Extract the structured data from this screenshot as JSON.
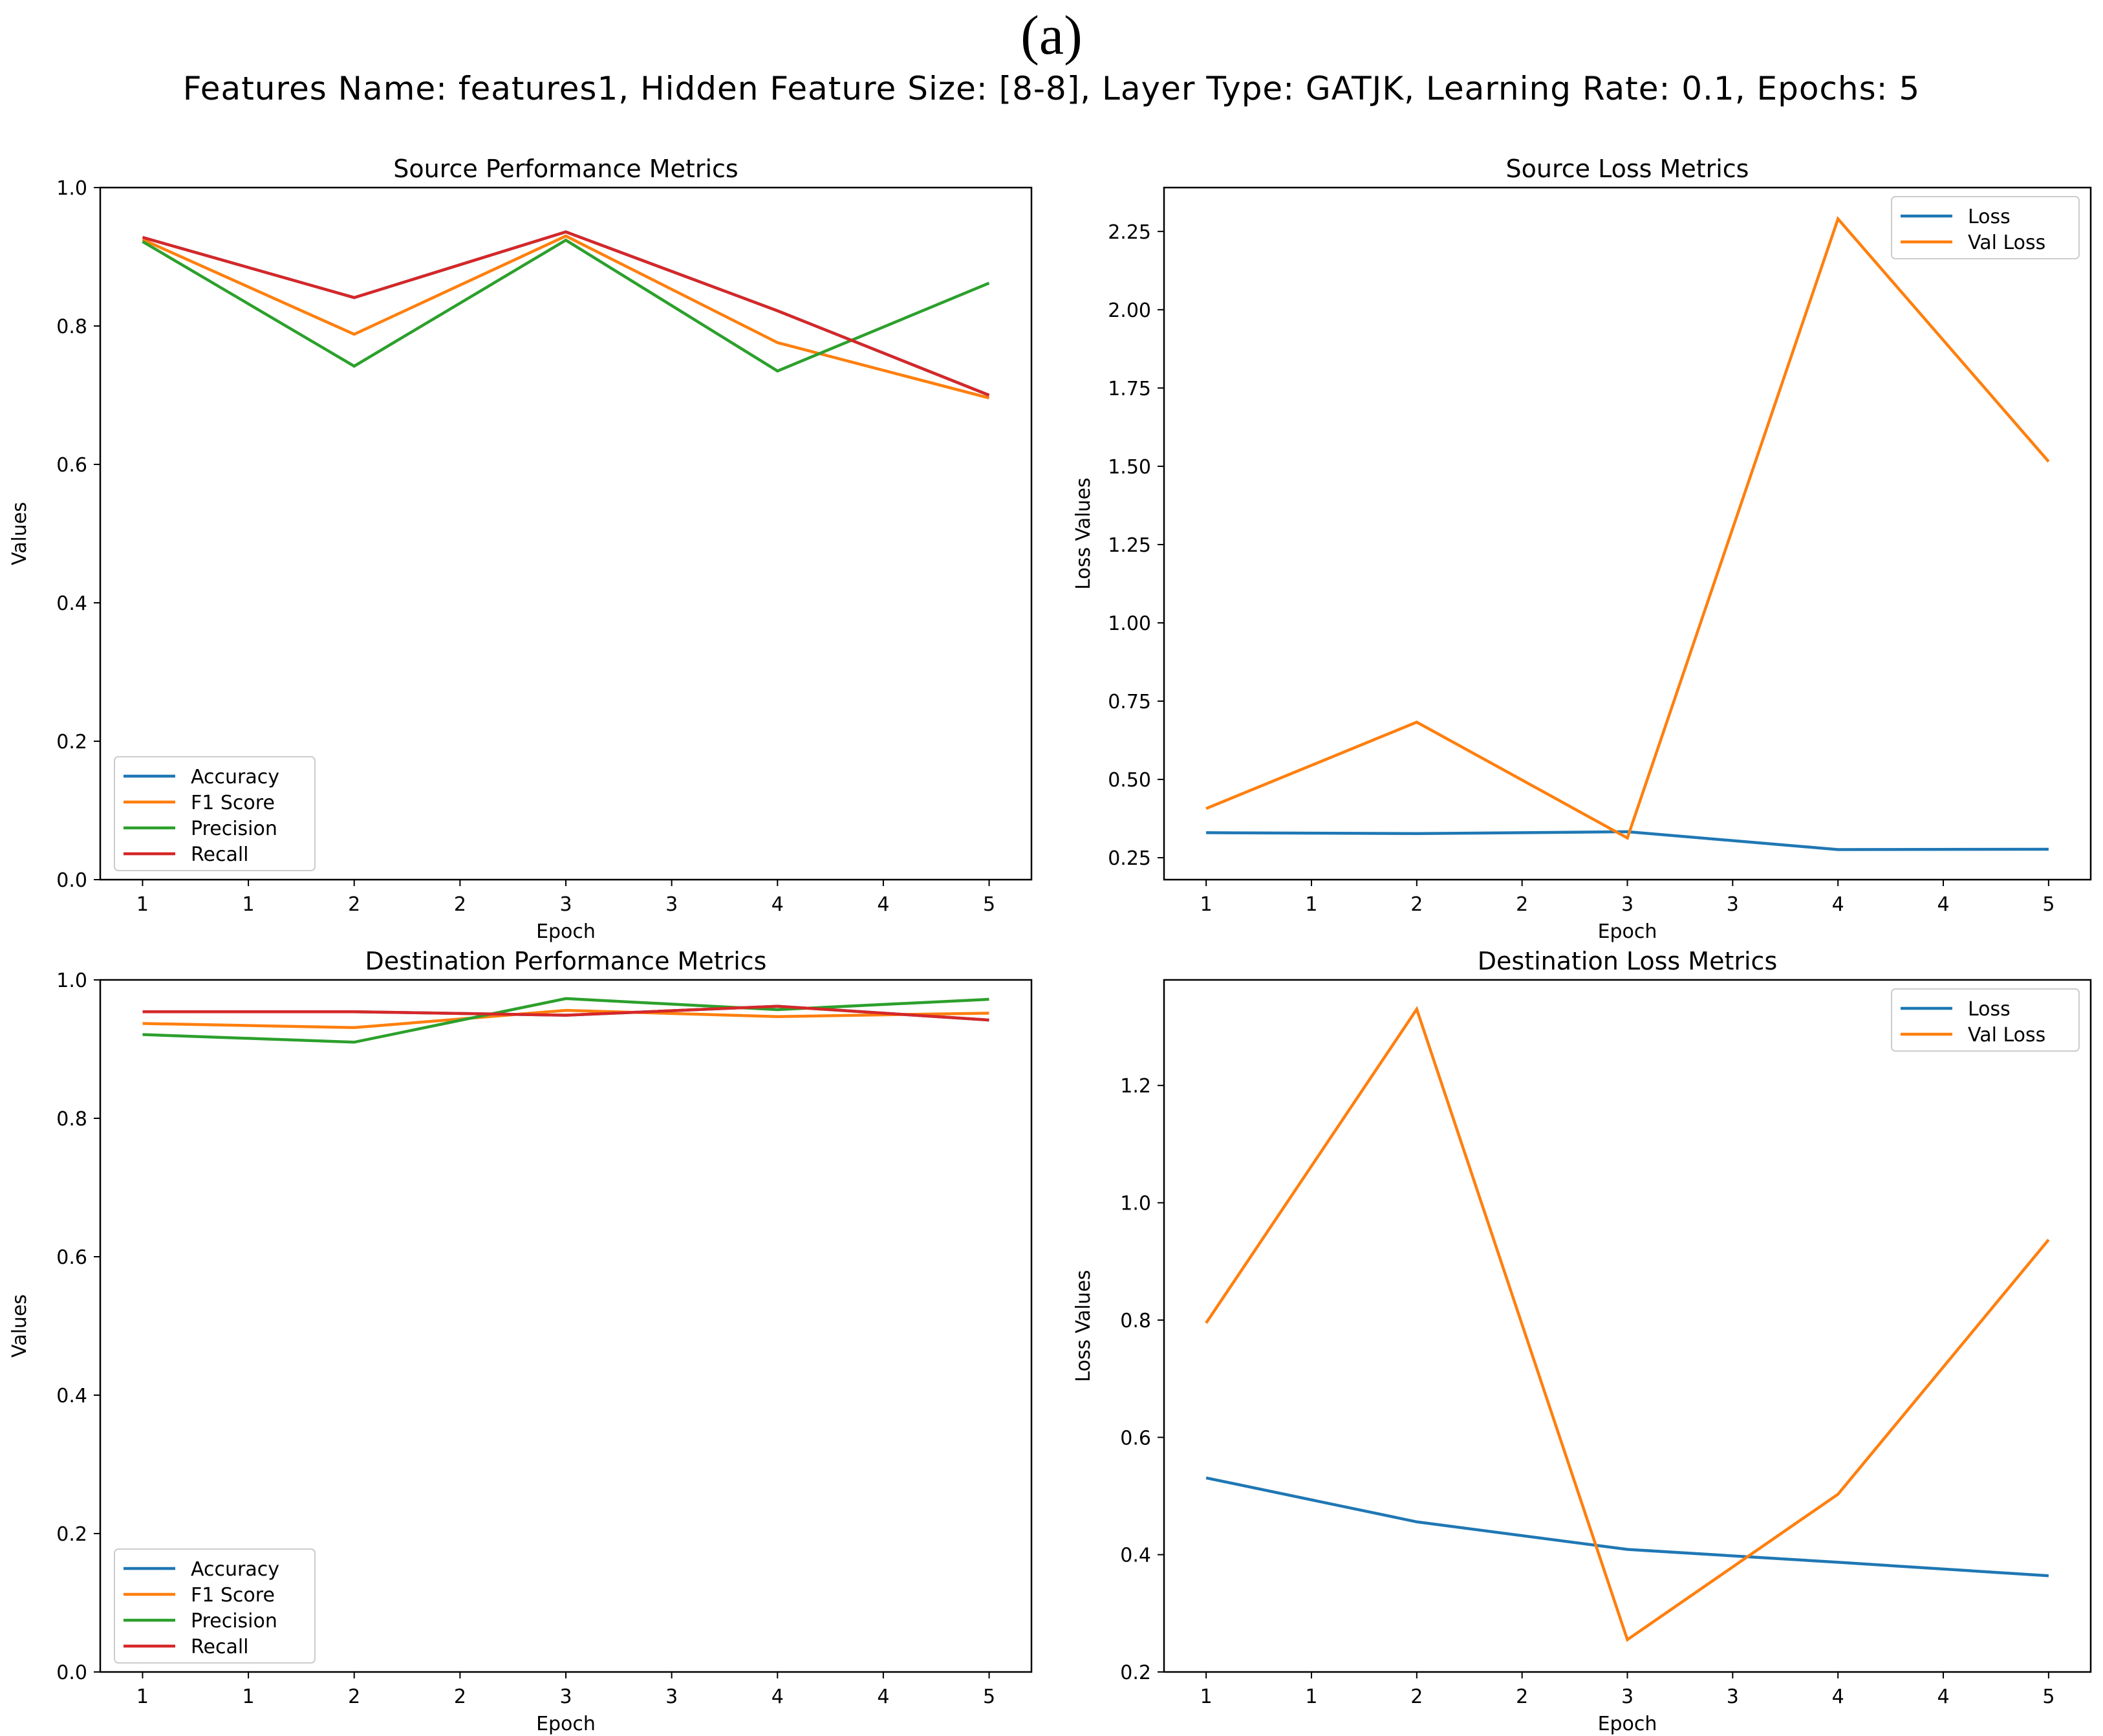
{
  "figure_label": "(a)",
  "suptitle": "Features Name: features1, Hidden Feature Size: [8-8], Layer Type: GATJK, Learning Rate: 0.1, Epochs: 5",
  "colors": {
    "blue": "#1f77b4",
    "orange": "#ff7f0e",
    "green": "#2ca02c",
    "red": "#d62728"
  },
  "chart_data": [
    {
      "id": "source-performance",
      "type": "line",
      "title": "Source Performance Metrics",
      "xlabel": "Epoch",
      "ylabel": "Values",
      "x": [
        1,
        2,
        3,
        4,
        5
      ],
      "xlim": [
        0.8,
        5.2
      ],
      "xticks": [
        1,
        1.5,
        2,
        2.5,
        3,
        3.5,
        4,
        4.5,
        5
      ],
      "xticklabels": [
        "1",
        "1",
        "2",
        "2",
        "3",
        "3",
        "4",
        "4",
        "5"
      ],
      "ylim": [
        0.0,
        1.0
      ],
      "yticks": [
        0.0,
        0.2,
        0.4,
        0.6,
        0.8,
        1.0
      ],
      "yticklabels": [
        "0.0",
        "0.2",
        "0.4",
        "0.6",
        "0.8",
        "1.0"
      ],
      "legend_loc": "lower-left",
      "series": [
        {
          "name": "Accuracy",
          "color": "#1f77b4",
          "values": [
            0.928,
            0.841,
            0.936,
            0.822,
            0.7
          ]
        },
        {
          "name": "F1 Score",
          "color": "#ff7f0e",
          "values": [
            0.925,
            0.788,
            0.93,
            0.776,
            0.696
          ]
        },
        {
          "name": "Precision",
          "color": "#2ca02c",
          "values": [
            0.922,
            0.742,
            0.924,
            0.735,
            0.862
          ]
        },
        {
          "name": "Recall",
          "color": "#d62728",
          "values": [
            0.928,
            0.841,
            0.936,
            0.822,
            0.7
          ]
        }
      ]
    },
    {
      "id": "source-loss",
      "type": "line",
      "title": "Source Loss Metrics",
      "xlabel": "Epoch",
      "ylabel": "Loss Values",
      "x": [
        1,
        2,
        3,
        4,
        5
      ],
      "xlim": [
        0.8,
        5.2
      ],
      "xticks": [
        1,
        1.5,
        2,
        2.5,
        3,
        3.5,
        4,
        4.5,
        5
      ],
      "xticklabels": [
        "1",
        "1",
        "2",
        "2",
        "3",
        "3",
        "4",
        "4",
        "5"
      ],
      "ylim": [
        0.18,
        2.39
      ],
      "yticks": [
        0.25,
        0.5,
        0.75,
        1.0,
        1.25,
        1.5,
        1.75,
        2.0,
        2.25
      ],
      "yticklabels": [
        "0.25",
        "0.50",
        "0.75",
        "1.00",
        "1.25",
        "1.50",
        "1.75",
        "2.00",
        "2.25"
      ],
      "legend_loc": "upper-right",
      "series": [
        {
          "name": "Loss",
          "color": "#1f77b4",
          "values": [
            0.33,
            0.327,
            0.333,
            0.276,
            0.277
          ]
        },
        {
          "name": "Val Loss",
          "color": "#ff7f0e",
          "values": [
            0.407,
            0.683,
            0.313,
            2.29,
            1.515
          ]
        }
      ]
    },
    {
      "id": "destination-performance",
      "type": "line",
      "title": "Destination Performance Metrics",
      "xlabel": "Epoch",
      "ylabel": "Values",
      "x": [
        1,
        2,
        3,
        4,
        5
      ],
      "xlim": [
        0.8,
        5.2
      ],
      "xticks": [
        1,
        1.5,
        2,
        2.5,
        3,
        3.5,
        4,
        4.5,
        5
      ],
      "xticklabels": [
        "1",
        "1",
        "2",
        "2",
        "3",
        "3",
        "4",
        "4",
        "5"
      ],
      "ylim": [
        0.0,
        1.0
      ],
      "yticks": [
        0.0,
        0.2,
        0.4,
        0.6,
        0.8,
        1.0
      ],
      "yticklabels": [
        "0.0",
        "0.2",
        "0.4",
        "0.6",
        "0.8",
        "1.0"
      ],
      "legend_loc": "lower-left",
      "series": [
        {
          "name": "Accuracy",
          "color": "#1f77b4",
          "values": [
            0.954,
            0.954,
            0.949,
            0.962,
            0.942
          ]
        },
        {
          "name": "F1 Score",
          "color": "#ff7f0e",
          "values": [
            0.937,
            0.931,
            0.956,
            0.947,
            0.952
          ]
        },
        {
          "name": "Precision",
          "color": "#2ca02c",
          "values": [
            0.921,
            0.91,
            0.973,
            0.957,
            0.972
          ]
        },
        {
          "name": "Recall",
          "color": "#d62728",
          "values": [
            0.954,
            0.954,
            0.949,
            0.962,
            0.942
          ]
        }
      ]
    },
    {
      "id": "destination-loss",
      "type": "line",
      "title": "Destination Loss Metrics",
      "xlabel": "Epoch",
      "ylabel": "Loss Values",
      "x": [
        1,
        2,
        3,
        4,
        5
      ],
      "xlim": [
        0.8,
        5.2
      ],
      "xticks": [
        1,
        1.5,
        2,
        2.5,
        3,
        3.5,
        4,
        4.5,
        5
      ],
      "xticklabels": [
        "1",
        "1",
        "2",
        "2",
        "3",
        "3",
        "4",
        "4",
        "5"
      ],
      "ylim": [
        0.2,
        1.38
      ],
      "yticks": [
        0.2,
        0.4,
        0.6,
        0.8,
        1.0,
        1.2
      ],
      "yticklabels": [
        "0.2",
        "0.4",
        "0.6",
        "0.8",
        "1.0",
        "1.2"
      ],
      "legend_loc": "upper-right",
      "series": [
        {
          "name": "Loss",
          "color": "#1f77b4",
          "values": [
            0.531,
            0.456,
            0.409,
            0.387,
            0.364
          ]
        },
        {
          "name": "Val Loss",
          "color": "#ff7f0e",
          "values": [
            0.795,
            1.33,
            0.255,
            0.503,
            0.937
          ]
        }
      ]
    }
  ]
}
